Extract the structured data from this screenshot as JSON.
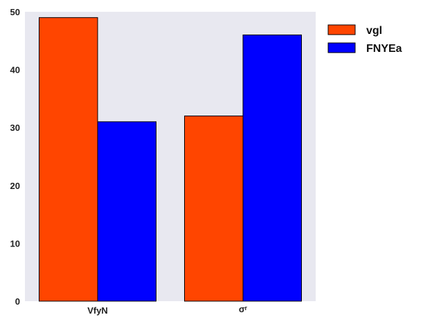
{
  "chart_data": {
    "type": "bar",
    "categories": [
      "VfyN",
      "σʳ"
    ],
    "series": [
      {
        "name": "vgl",
        "values": [
          49,
          32
        ],
        "color": "#ff4500"
      },
      {
        "name": "FNYEa",
        "values": [
          31,
          46
        ],
        "color": "#0000ff"
      }
    ],
    "title": "",
    "xlabel": "",
    "ylabel": "",
    "ylim": [
      0,
      50
    ],
    "yticks": [
      0,
      10,
      20,
      30,
      40,
      50
    ],
    "grid": false,
    "legend_position": "outside-right-top",
    "plot_background": "#e8e8f0"
  }
}
